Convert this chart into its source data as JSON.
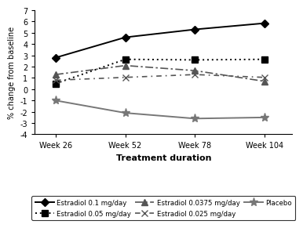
{
  "x_labels": [
    "Week 26",
    "Week 52",
    "Week 78",
    "Week 104"
  ],
  "x_values": [
    0,
    1,
    2,
    3
  ],
  "series": [
    {
      "label": "Estradiol 0.1 mg/day",
      "values": [
        2.8,
        4.6,
        5.3,
        5.85
      ],
      "color": "#000000",
      "linestyle": "solid",
      "marker": "D",
      "markersize": 5,
      "linewidth": 1.4,
      "fillstyle": "full"
    },
    {
      "label": "Estradiol 0.05 mg/day",
      "values": [
        0.5,
        2.65,
        2.6,
        2.65
      ],
      "color": "#000000",
      "linestyle": "dotted",
      "marker": "s",
      "markersize": 6,
      "linewidth": 1.4,
      "fillstyle": "full"
    },
    {
      "label": "Estradiol 0.0375 mg/day",
      "values": [
        1.3,
        2.1,
        1.65,
        0.7
      ],
      "color": "#555555",
      "linestyle": "dashdot",
      "marker": "^",
      "markersize": 6,
      "linewidth": 1.2,
      "fillstyle": "full"
    },
    {
      "label": "Estradiol 0.025 mg/day",
      "values": [
        0.8,
        1.05,
        1.3,
        1.05
      ],
      "color": "#555555",
      "linestyle": "dashdot2",
      "marker": "x",
      "markersize": 6,
      "linewidth": 1.2,
      "fillstyle": "full"
    },
    {
      "label": "Placebo",
      "values": [
        -1.0,
        -2.1,
        -2.6,
        -2.5
      ],
      "color": "#777777",
      "linestyle": "solid",
      "marker": "*",
      "markersize": 8,
      "linewidth": 1.4,
      "fillstyle": "full"
    }
  ],
  "ylabel": "% change from baseline",
  "xlabel": "Treatment duration",
  "ylim": [
    -4,
    7
  ],
  "yticks": [
    -4,
    -3,
    -2,
    -1,
    0,
    1,
    2,
    3,
    4,
    5,
    6,
    7
  ],
  "background_color": "#ffffff"
}
